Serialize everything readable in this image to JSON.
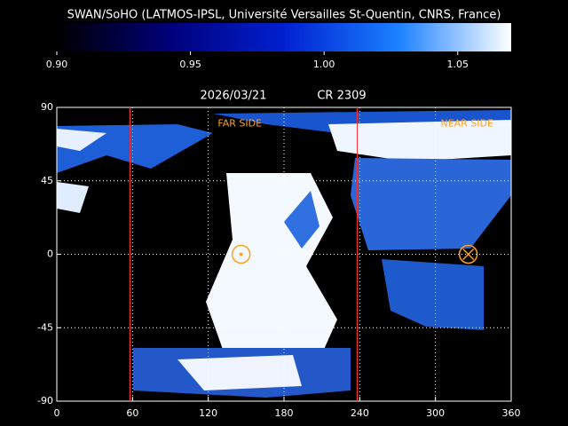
{
  "chart_data": {
    "type": "heatmap",
    "title": "SWAN/SoHO (LATMOS-IPSL, Université Versailles St-Quentin, CNRS, France)",
    "date": "2026/03/21",
    "rotation": "CR 2309",
    "colorbar": {
      "lim": [
        0.9,
        1.07
      ],
      "colors": [
        "#000000",
        "#00007a",
        "#0020d0",
        "#1a80ff",
        "#ffffff"
      ],
      "ticks": [
        {
          "value": 0.9,
          "label": "0.90"
        },
        {
          "value": 0.95,
          "label": "0.95"
        },
        {
          "value": 1.0,
          "label": "1.00"
        },
        {
          "value": 1.05,
          "label": "1.05"
        }
      ]
    },
    "xlim": [
      0,
      360
    ],
    "ylim": [
      -90,
      90
    ],
    "xticks": [
      0,
      60,
      120,
      180,
      240,
      300,
      360
    ],
    "yticks": [
      90,
      45,
      0,
      -45,
      -90
    ],
    "grid": true,
    "boundaries": [
      58,
      238
    ],
    "boundary_color": "#ff3030",
    "annotations": [
      {
        "text": "FAR SIDE",
        "lon": 145,
        "lat": 80
      },
      {
        "text": "NEAR SIDE",
        "lon": 325,
        "lat": 80
      }
    ],
    "annotation_color": "#ffa020",
    "markers": [
      {
        "lon": 146,
        "lat": 0,
        "symbol": "dot"
      },
      {
        "lon": 326,
        "lat": 0,
        "symbol": "cross"
      }
    ]
  }
}
